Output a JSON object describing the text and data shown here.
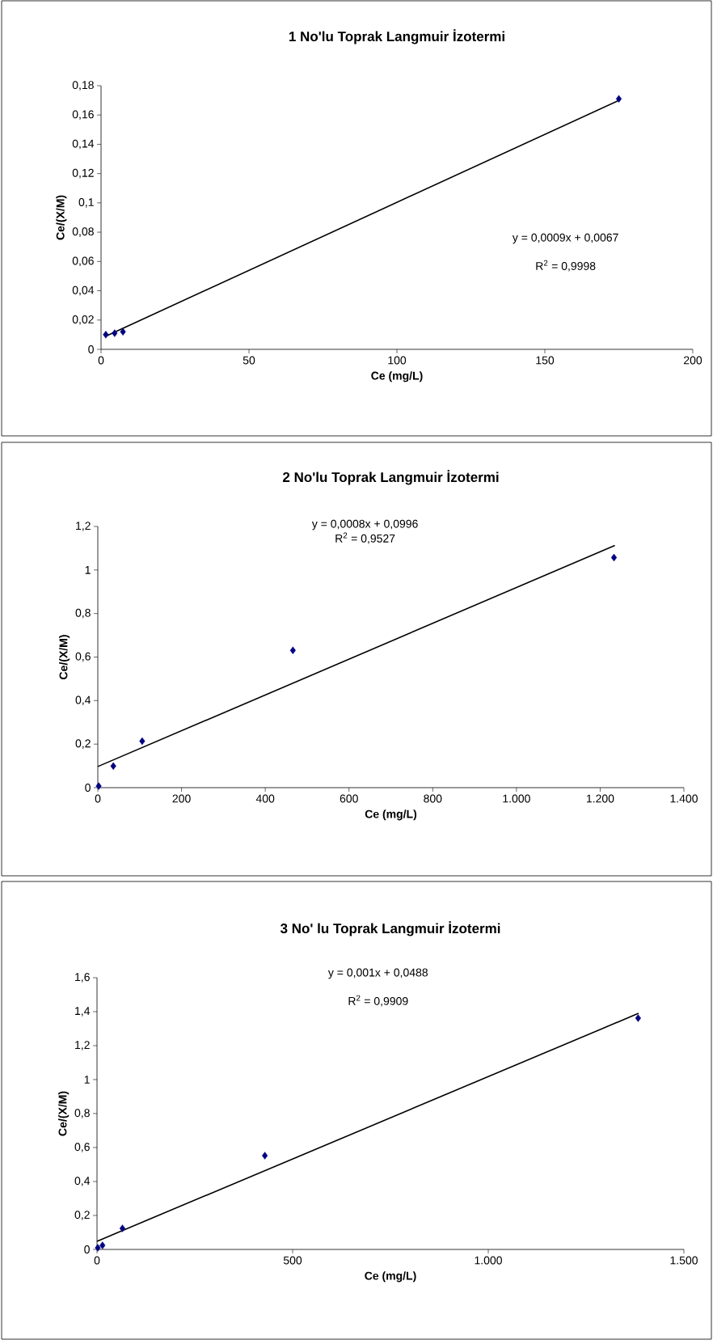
{
  "chart_data": [
    {
      "type": "scatter",
      "title": "1 No'lu Toprak Langmuir İzotermi",
      "xlabel": "Ce (mg/L)",
      "ylabel": "Ce/(X/M)",
      "xlim": [
        0,
        200
      ],
      "ylim": [
        0,
        0.18
      ],
      "xticks": [
        0,
        50,
        100,
        150,
        200
      ],
      "yticks": [
        0,
        {
          "value": 0.02,
          "label": "0,02"
        },
        {
          "value": 0.04,
          "label": "0,04"
        },
        {
          "value": 0.06,
          "label": "0,06"
        },
        {
          "value": 0.08,
          "label": "0,08"
        },
        {
          "value": 0.1,
          "label": "0,1"
        },
        {
          "value": 0.12,
          "label": "0,12"
        },
        {
          "value": 0.14,
          "label": "0,14"
        },
        {
          "value": 0.16,
          "label": "0,16"
        },
        {
          "value": 0.18,
          "label": "0,18"
        }
      ],
      "series": [
        {
          "type": "scatter",
          "color": "#000080",
          "marker": "diamond",
          "x": [
            1.6,
            4.6,
            7.4,
            175
          ],
          "values": [
            0.01,
            0.011,
            0.012,
            0.171
          ]
        },
        {
          "type": "line",
          "color": "#000000",
          "line_style": "solid",
          "x": [
            1.6,
            175
          ],
          "values": [
            0.009,
            0.17
          ]
        }
      ],
      "annotations": [
        "y = 0,0009x + 0,0067",
        "R$^{2}$ = 0,9998"
      ]
    },
    {
      "type": "scatter",
      "title": "2 No'lu Toprak Langmuir İzotermi",
      "xlabel": "Ce (mg/L)",
      "ylabel": "Ce/(X/M)",
      "xlim": [
        0,
        1400
      ],
      "ylim": [
        0,
        1.2
      ],
      "xticks": [
        0,
        200,
        400,
        600,
        800,
        {
          "value": 1000,
          "label": "1.000"
        },
        {
          "value": 1200,
          "label": "1.200"
        },
        {
          "value": 1400,
          "label": "1.400"
        }
      ],
      "yticks": [
        0,
        {
          "value": 0.2,
          "label": "0,2"
        },
        {
          "value": 0.4,
          "label": "0,4"
        },
        {
          "value": 0.6,
          "label": "0,6"
        },
        {
          "value": 0.8,
          "label": "0,8"
        },
        1,
        {
          "value": 1.2,
          "label": "1,2"
        }
      ],
      "series": [
        {
          "type": "scatter",
          "color": "#000080",
          "marker": "diamond",
          "x": [
            2,
            37,
            106,
            466,
            1233
          ],
          "values": [
            0.007,
            0.099,
            0.214,
            0.631,
            1.057
          ]
        },
        {
          "type": "line",
          "color": "#000000",
          "line_style": "solid",
          "x": [
            0,
            1235
          ],
          "values": [
            0.097,
            1.113
          ]
        }
      ],
      "annotations": [
        "y = 0,0008x + 0,0996",
        "R$^{2}$ = 0,9527"
      ]
    },
    {
      "type": "scatter",
      "title": "3 No' lu Toprak Langmuir İzotermi",
      "xlabel": "Ce (mg/L)",
      "ylabel": "Ce/(X/M)",
      "xlim": [
        0,
        1500
      ],
      "ylim": [
        0,
        1.6
      ],
      "xticks": [
        0,
        500,
        {
          "value": 1000,
          "label": "1.000"
        },
        {
          "value": 1500,
          "label": "1.500"
        }
      ],
      "yticks": [
        0,
        {
          "value": 0.2,
          "label": "0,2"
        },
        {
          "value": 0.4,
          "label": "0,4"
        },
        {
          "value": 0.6,
          "label": "0,6"
        },
        {
          "value": 0.8,
          "label": "0,8"
        },
        1,
        {
          "value": 1.2,
          "label": "1,2"
        },
        {
          "value": 1.4,
          "label": "1,4"
        },
        {
          "value": 1.6,
          "label": "1,6"
        }
      ],
      "series": [
        {
          "type": "scatter",
          "color": "#000080",
          "marker": "diamond",
          "x": [
            2,
            14,
            65,
            429,
            1383
          ],
          "values": [
            0.01,
            0.024,
            0.124,
            0.552,
            1.362
          ]
        },
        {
          "type": "line",
          "color": "#000000",
          "line_style": "solid",
          "x": [
            0,
            1384
          ],
          "values": [
            0.048,
            1.39
          ]
        }
      ],
      "annotations": [
        "y = 0,001x + 0,0488",
        "R$^{2}$ = 0,9909"
      ]
    }
  ]
}
